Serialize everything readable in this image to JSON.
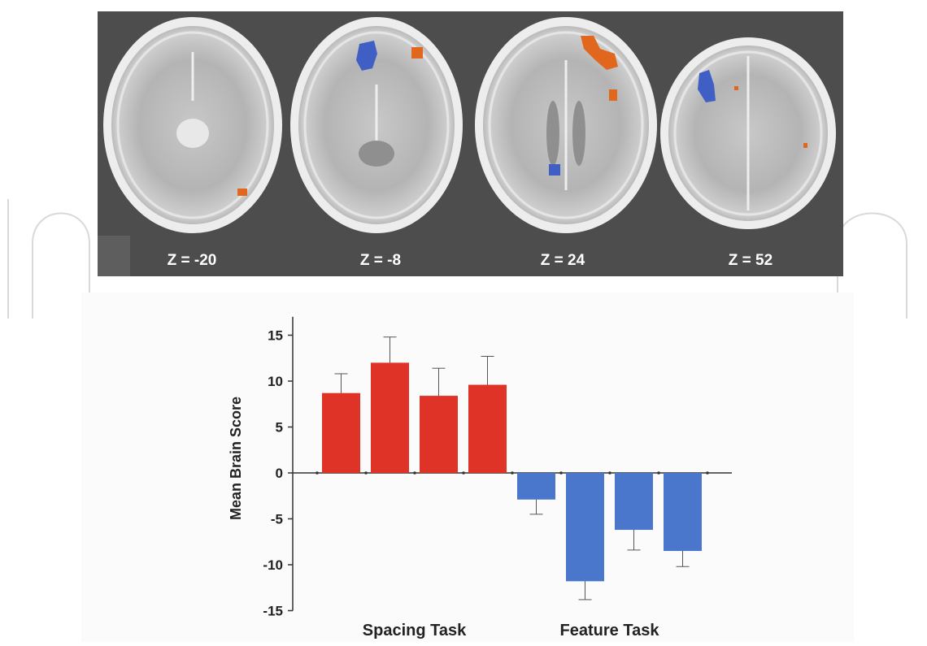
{
  "brain_slices": [
    {
      "label": "Z = -20"
    },
    {
      "label": "Z = -8"
    },
    {
      "label": "Z = 24"
    },
    {
      "label": "Z = 52"
    }
  ],
  "colors": {
    "panel_bg": "#4d4d4d",
    "activation_positive": "#e1661e",
    "activation_negative": "#3f5fc4",
    "bar_spacing": "#e03327",
    "bar_feature": "#4a77cc",
    "arrowhead": "#111111"
  },
  "chart_data": {
    "type": "bar",
    "ylabel": "Mean Brain Score",
    "ylim": [
      -15,
      17
    ],
    "yticks": [
      15,
      10,
      5,
      0,
      -5,
      -10,
      -15
    ],
    "groups": [
      "Spacing Task",
      "Feature Task"
    ],
    "series": [
      {
        "group": "Spacing Task",
        "values": [
          8.7,
          12.0,
          8.4,
          9.6
        ],
        "errors": [
          2.1,
          2.8,
          3.0,
          3.1
        ]
      },
      {
        "group": "Feature Task",
        "values": [
          -2.9,
          -11.8,
          -6.2,
          -8.5
        ],
        "errors": [
          1.6,
          2.0,
          2.2,
          1.7
        ]
      }
    ]
  }
}
